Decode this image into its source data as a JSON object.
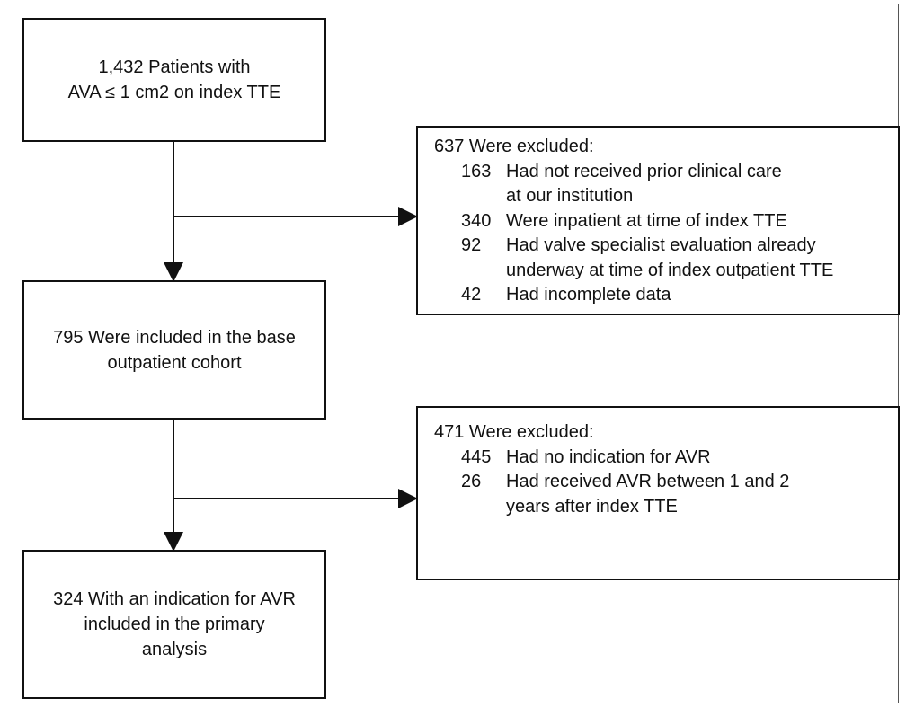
{
  "nodes": [
    {
      "lines": [
        "1,432 Patients with",
        "AVA ≤ 1 cm2 on index TTE"
      ]
    },
    {
      "lines": [
        "795 Were included in the base",
        "outpatient cohort"
      ]
    },
    {
      "lines": [
        "324 With an indication for AVR",
        "included in the primary",
        "analysis"
      ]
    }
  ],
  "exclusions": [
    {
      "heading": "637 Were excluded:",
      "items": [
        {
          "count": 163,
          "lines": [
            "Had not received prior clinical care",
            "at our institution"
          ]
        },
        {
          "count": 340,
          "lines": [
            "Were inpatient at time of index TTE"
          ]
        },
        {
          "count": 92,
          "lines": [
            "Had valve specialist evaluation already",
            "underway at time of index outpatient TTE"
          ]
        },
        {
          "count": 42,
          "lines": [
            "Had incomplete data"
          ]
        }
      ]
    },
    {
      "heading": "471 Were excluded:",
      "items": [
        {
          "count": 445,
          "lines": [
            "Had no indication for AVR"
          ]
        },
        {
          "count": 26,
          "lines": [
            "Had received AVR between 1 and  2",
            "years after index TTE"
          ]
        }
      ]
    }
  ]
}
